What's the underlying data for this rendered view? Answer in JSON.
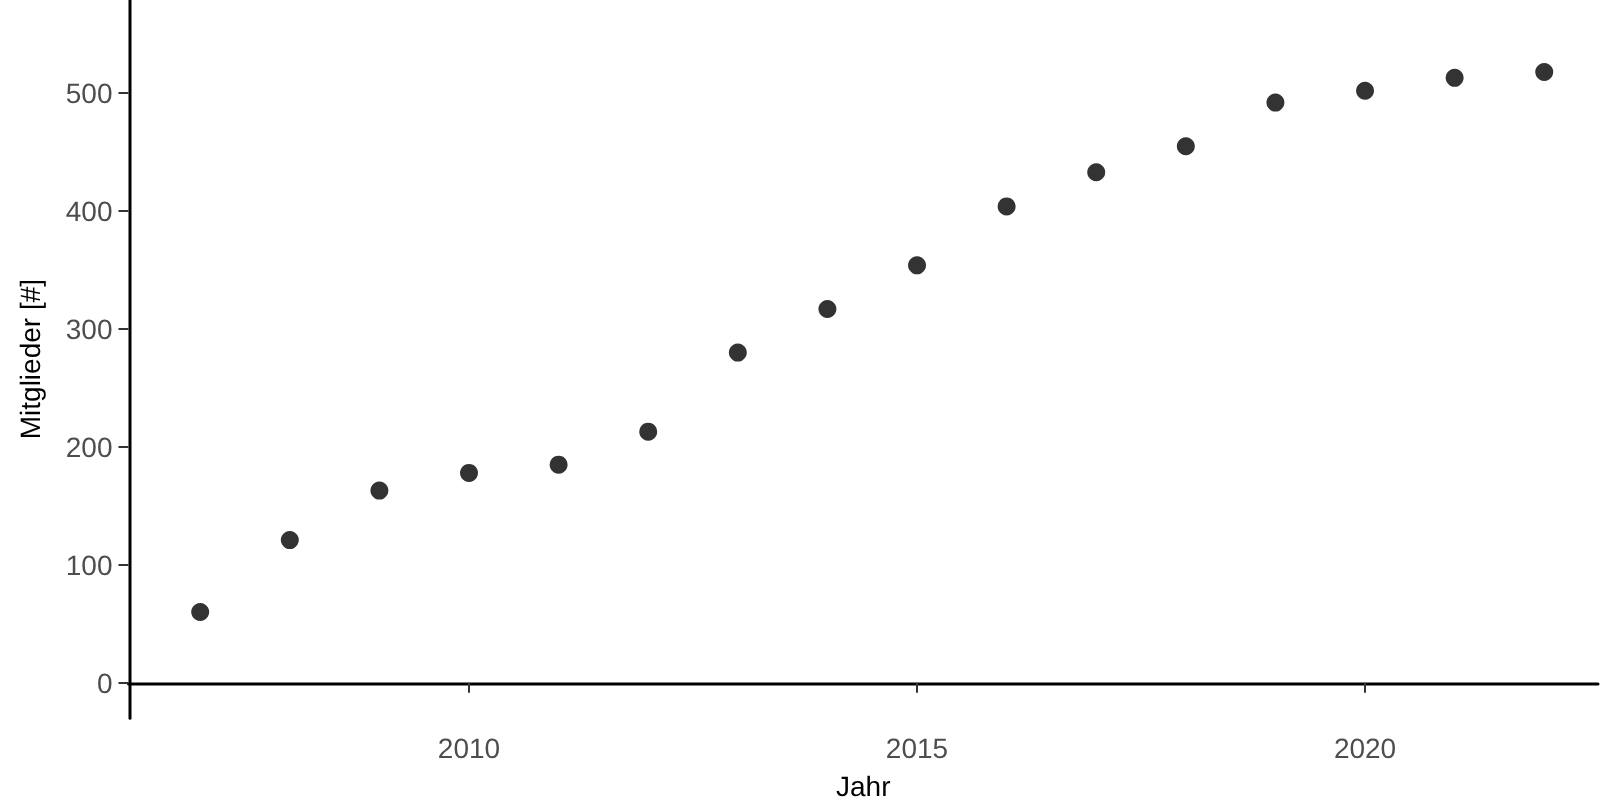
{
  "chart_data": {
    "type": "scatter",
    "xlabel": "Jahr",
    "ylabel": "Mitglieder [#]",
    "x": [
      2007,
      2008,
      2009,
      2010,
      2011,
      2012,
      2013,
      2014,
      2015,
      2016,
      2017,
      2018,
      2019,
      2020,
      2021,
      2022
    ],
    "values": [
      60,
      121,
      163,
      178,
      185,
      213,
      280,
      317,
      354,
      404,
      433,
      455,
      492,
      502,
      513,
      518
    ],
    "color": "#000000",
    "marker": "circle",
    "grid": false,
    "xlim": [
      2006.2,
      2022.6
    ],
    "xticks": [
      2010,
      2015,
      2020
    ],
    "ylim": [
      -30,
      579
    ],
    "yticks": [
      0,
      100,
      200,
      300,
      400,
      500
    ]
  }
}
